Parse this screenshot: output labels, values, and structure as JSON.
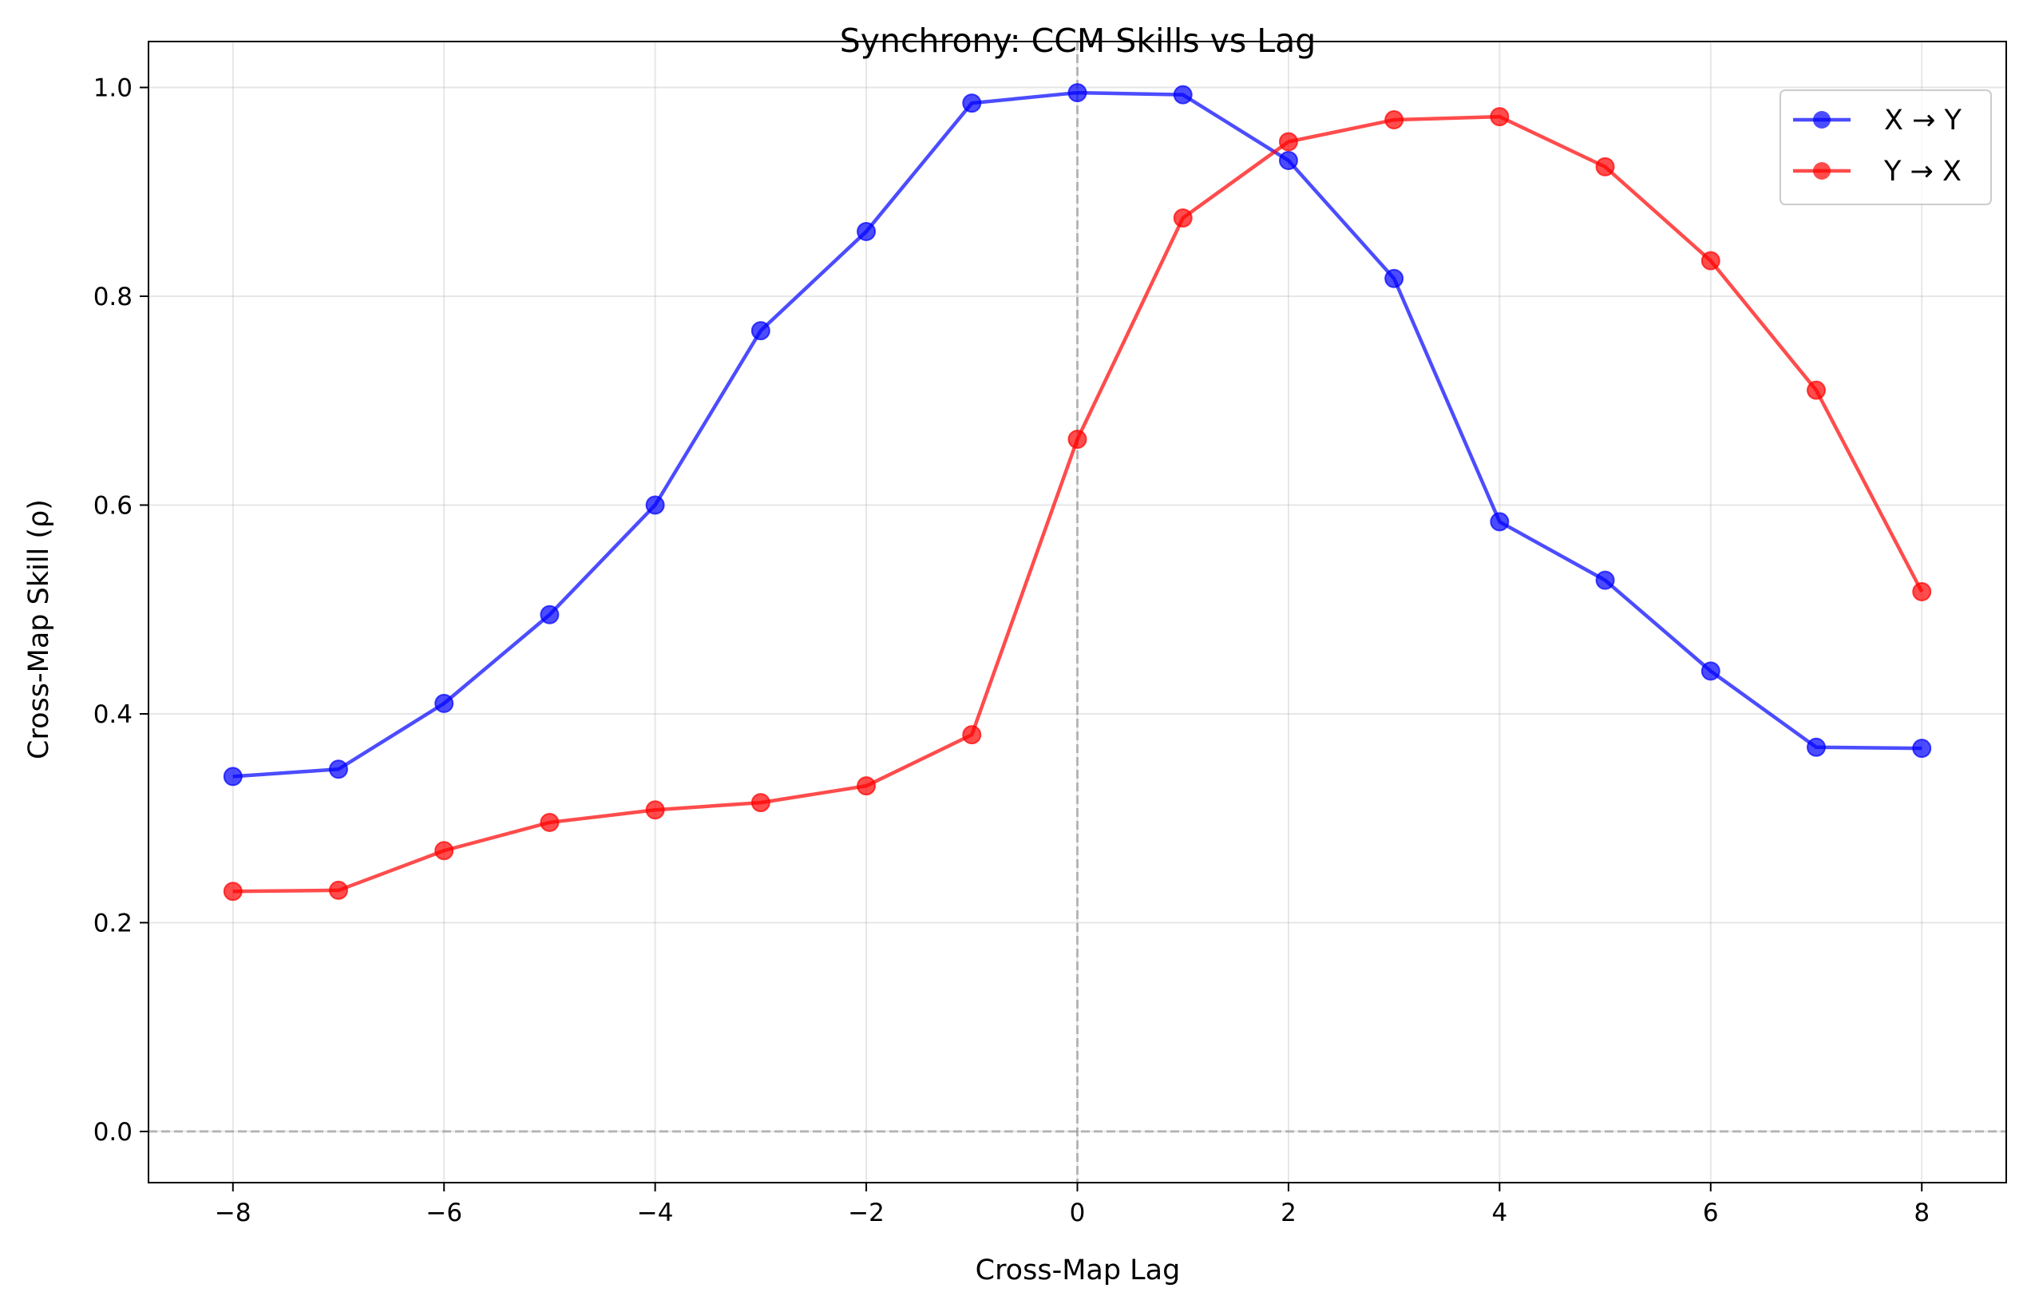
{
  "chart_data": {
    "type": "line",
    "title": "Synchrony: CCM Skills vs Lag",
    "xlabel": "Cross-Map Lag",
    "ylabel": "Cross-Map Skill (ρ)",
    "x": [
      -8,
      -7,
      -6,
      -5,
      -4,
      -3,
      -2,
      -1,
      0,
      1,
      2,
      3,
      4,
      5,
      6,
      7,
      8
    ],
    "xlim": [
      -8.8,
      8.8
    ],
    "ylim": [
      -0.049,
      1.044
    ],
    "xticks": [
      -8,
      -6,
      -4,
      -2,
      0,
      2,
      4,
      6,
      8
    ],
    "xtick_labels": [
      "−8",
      "−6",
      "−4",
      "−2",
      "0",
      "2",
      "4",
      "6",
      "8"
    ],
    "yticks": [
      0.0,
      0.2,
      0.4,
      0.6,
      0.8,
      1.0
    ],
    "ytick_labels": [
      "0.0",
      "0.2",
      "0.4",
      "0.6",
      "0.8",
      "1.0"
    ],
    "grid": true,
    "reference_lines": {
      "x": 0,
      "y": 0
    },
    "legend_position": "top-right",
    "series": [
      {
        "name": "X → Y",
        "color": "#0000ff",
        "values": [
          0.34,
          0.347,
          0.41,
          0.495,
          0.6,
          0.767,
          0.862,
          0.985,
          0.995,
          0.993,
          0.93,
          0.817,
          0.584,
          0.528,
          0.441,
          0.368,
          0.367
        ]
      },
      {
        "name": "Y → X",
        "color": "#ff0000",
        "values": [
          0.23,
          0.231,
          0.269,
          0.296,
          0.308,
          0.315,
          0.331,
          0.38,
          0.663,
          0.875,
          0.948,
          0.969,
          0.972,
          0.924,
          0.834,
          0.71,
          0.517
        ]
      }
    ]
  }
}
